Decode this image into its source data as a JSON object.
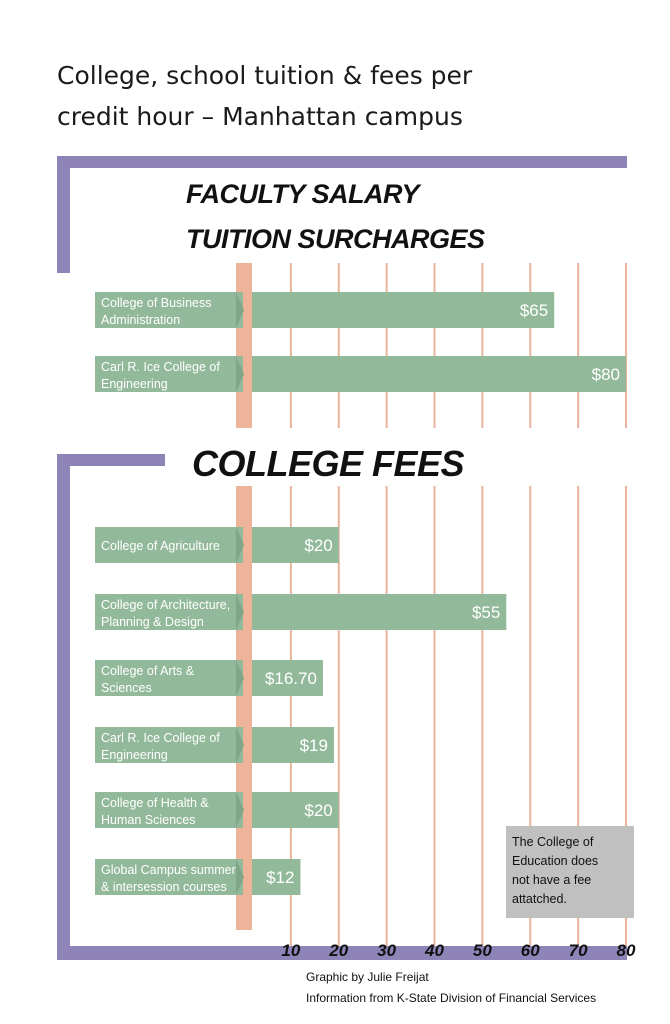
{
  "chart_data": {
    "type": "bar",
    "orientation": "horizontal",
    "title_lines": [
      "College, school tuition & fees per",
      "credit hour – Manhattan campus"
    ],
    "x_ticks": [
      10,
      20,
      30,
      40,
      50,
      60,
      70,
      80
    ],
    "xlim": [
      0,
      80
    ],
    "panels": [
      {
        "title_lines": [
          "FACULTY SALARY",
          "TUITION SURCHARGES"
        ],
        "bars": [
          {
            "label_lines": [
              "College of Business",
              "Administration"
            ],
            "value": 65,
            "value_label": "$65"
          },
          {
            "label_lines": [
              "Carl R. Ice College of",
              "Engineering"
            ],
            "value": 80,
            "value_label": "$80"
          }
        ]
      },
      {
        "title_lines": [
          "COLLEGE FEES"
        ],
        "bars": [
          {
            "label_lines": [
              "College of Agriculture"
            ],
            "value": 20,
            "value_label": "$20"
          },
          {
            "label_lines": [
              "College of Architecture,",
              "Planning & Design"
            ],
            "value": 55,
            "value_label": "$55"
          },
          {
            "label_lines": [
              "College of Arts &",
              "Sciences"
            ],
            "value": 16.7,
            "value_label": "$16.70"
          },
          {
            "label_lines": [
              "Carl R. Ice College of",
              "Engineering"
            ],
            "value": 19,
            "value_label": "$19"
          },
          {
            "label_lines": [
              "College of Health &",
              "Human Sciences"
            ],
            "value": 20,
            "value_label": "$20"
          },
          {
            "label_lines": [
              "Global Campus summer",
              "& intersession courses"
            ],
            "value": 12,
            "value_label": "$12"
          }
        ]
      }
    ],
    "note_lines": [
      "The College of",
      "Education does",
      "not have a fee",
      "attatched."
    ],
    "credits": [
      "Graphic by Julie Freijat",
      "Information from K-State Division of Financial Services"
    ],
    "colors": {
      "bar": "#93b99b",
      "frame": "#8e84b8",
      "gridline": "#e9b39c",
      "axis_band": "#eeb499",
      "note_box": "#c0c0c0"
    }
  }
}
